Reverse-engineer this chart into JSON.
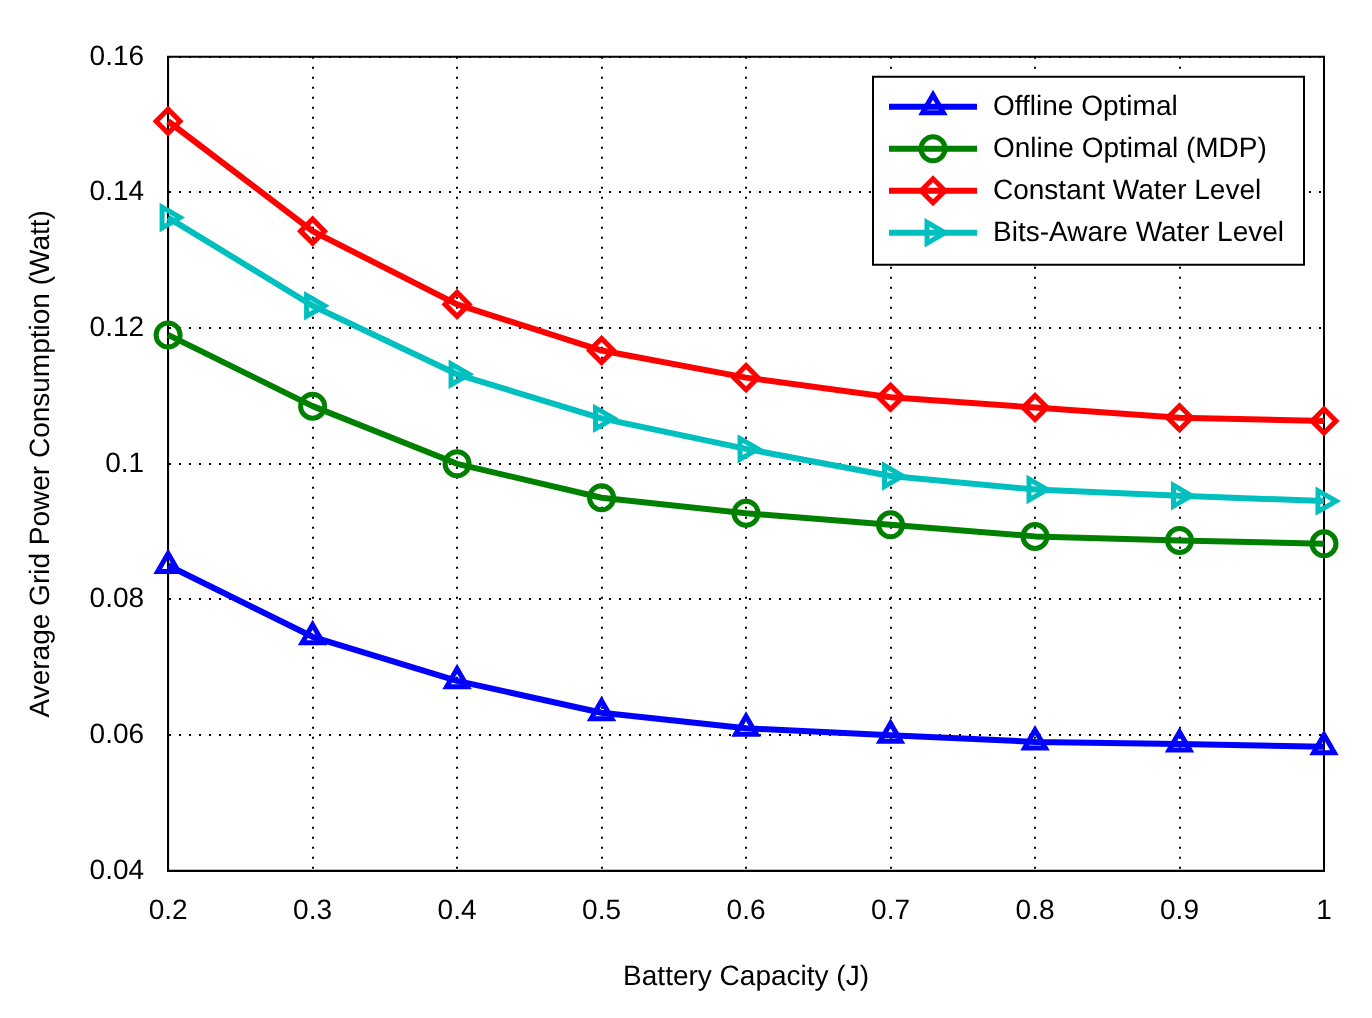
{
  "chart_data": {
    "type": "line",
    "xlabel": "Battery Capacity (J)",
    "ylabel": "Average Grid Power Consumption (Watt)",
    "x": [
      0.2,
      0.3,
      0.4,
      0.5,
      0.6,
      0.7,
      0.8,
      0.9,
      1
    ],
    "series": [
      {
        "name": "Offline Optimal",
        "color": "#0000ff",
        "marker": "triangle",
        "values": [
          0.085,
          0.0745,
          0.068,
          0.0633,
          0.061,
          0.06,
          0.059,
          0.0587,
          0.0583
        ]
      },
      {
        "name": "Online Optimal (MDP)",
        "color": "#008000",
        "marker": "circle",
        "values": [
          0.119,
          0.1085,
          0.1,
          0.095,
          0.0927,
          0.091,
          0.0893,
          0.0887,
          0.0882
        ]
      },
      {
        "name": "Constant Water Level",
        "color": "#ff0000",
        "marker": "diamond",
        "values": [
          0.1505,
          0.1343,
          0.1235,
          0.1167,
          0.1127,
          0.1098,
          0.1083,
          0.1068,
          0.1063
        ]
      },
      {
        "name": "Bits-Aware Water Level",
        "color": "#00bfbf",
        "marker": "triangle-right",
        "values": [
          0.1363,
          0.1233,
          0.1132,
          0.1067,
          0.1022,
          0.0982,
          0.0962,
          0.0953,
          0.0945
        ]
      }
    ],
    "xlim": [
      0.2,
      1
    ],
    "xticks": [
      0.2,
      0.3,
      0.4,
      0.5,
      0.6,
      0.7,
      0.8,
      0.9,
      1
    ],
    "ylim": [
      0.04,
      0.16
    ],
    "yticks": [
      0.04,
      0.06,
      0.08,
      0.1,
      0.12,
      0.14,
      0.16
    ],
    "grid": true,
    "legend": "top right",
    "line_style": "solid"
  }
}
